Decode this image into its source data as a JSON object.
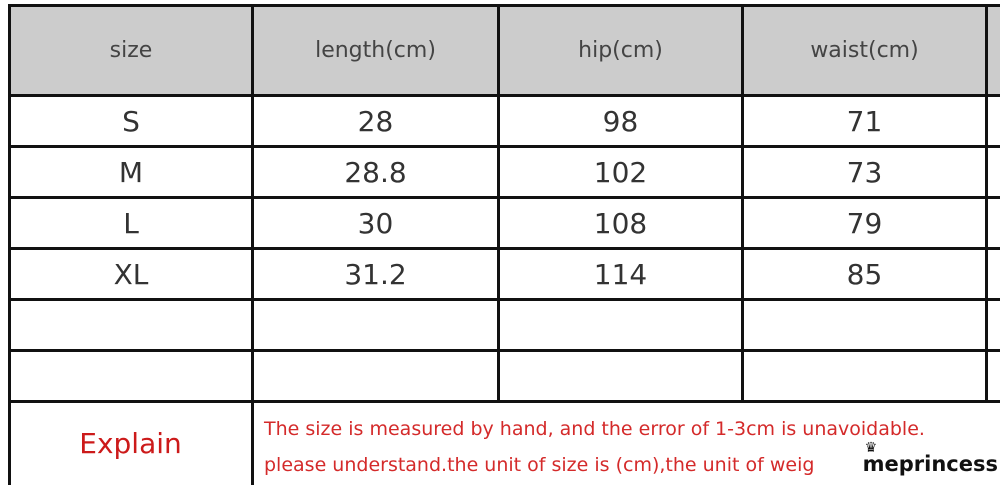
{
  "table": {
    "headers": [
      "size",
      "length(cm)",
      "hip(cm)",
      "waist(cm)"
    ],
    "rows": [
      [
        "S",
        "28",
        "98",
        "71"
      ],
      [
        "M",
        "28.8",
        "102",
        "73"
      ],
      [
        "L",
        "30",
        "108",
        "79"
      ],
      [
        "XL",
        "31.2",
        "114",
        "85"
      ],
      [
        "",
        "",
        "",
        ""
      ],
      [
        "",
        "",
        "",
        ""
      ]
    ],
    "explain_label": "Explain",
    "explain_lines": [
      "The size is measured by hand, and the error of 1-3cm is unavoidable.",
      "please understand.the unit of size is (cm),the unit of weig"
    ]
  },
  "watermark": {
    "text": "meprincess"
  },
  "colors": {
    "header_bg": "#cccccc",
    "explain_text": "#cc1a1a",
    "border": "#111111"
  }
}
